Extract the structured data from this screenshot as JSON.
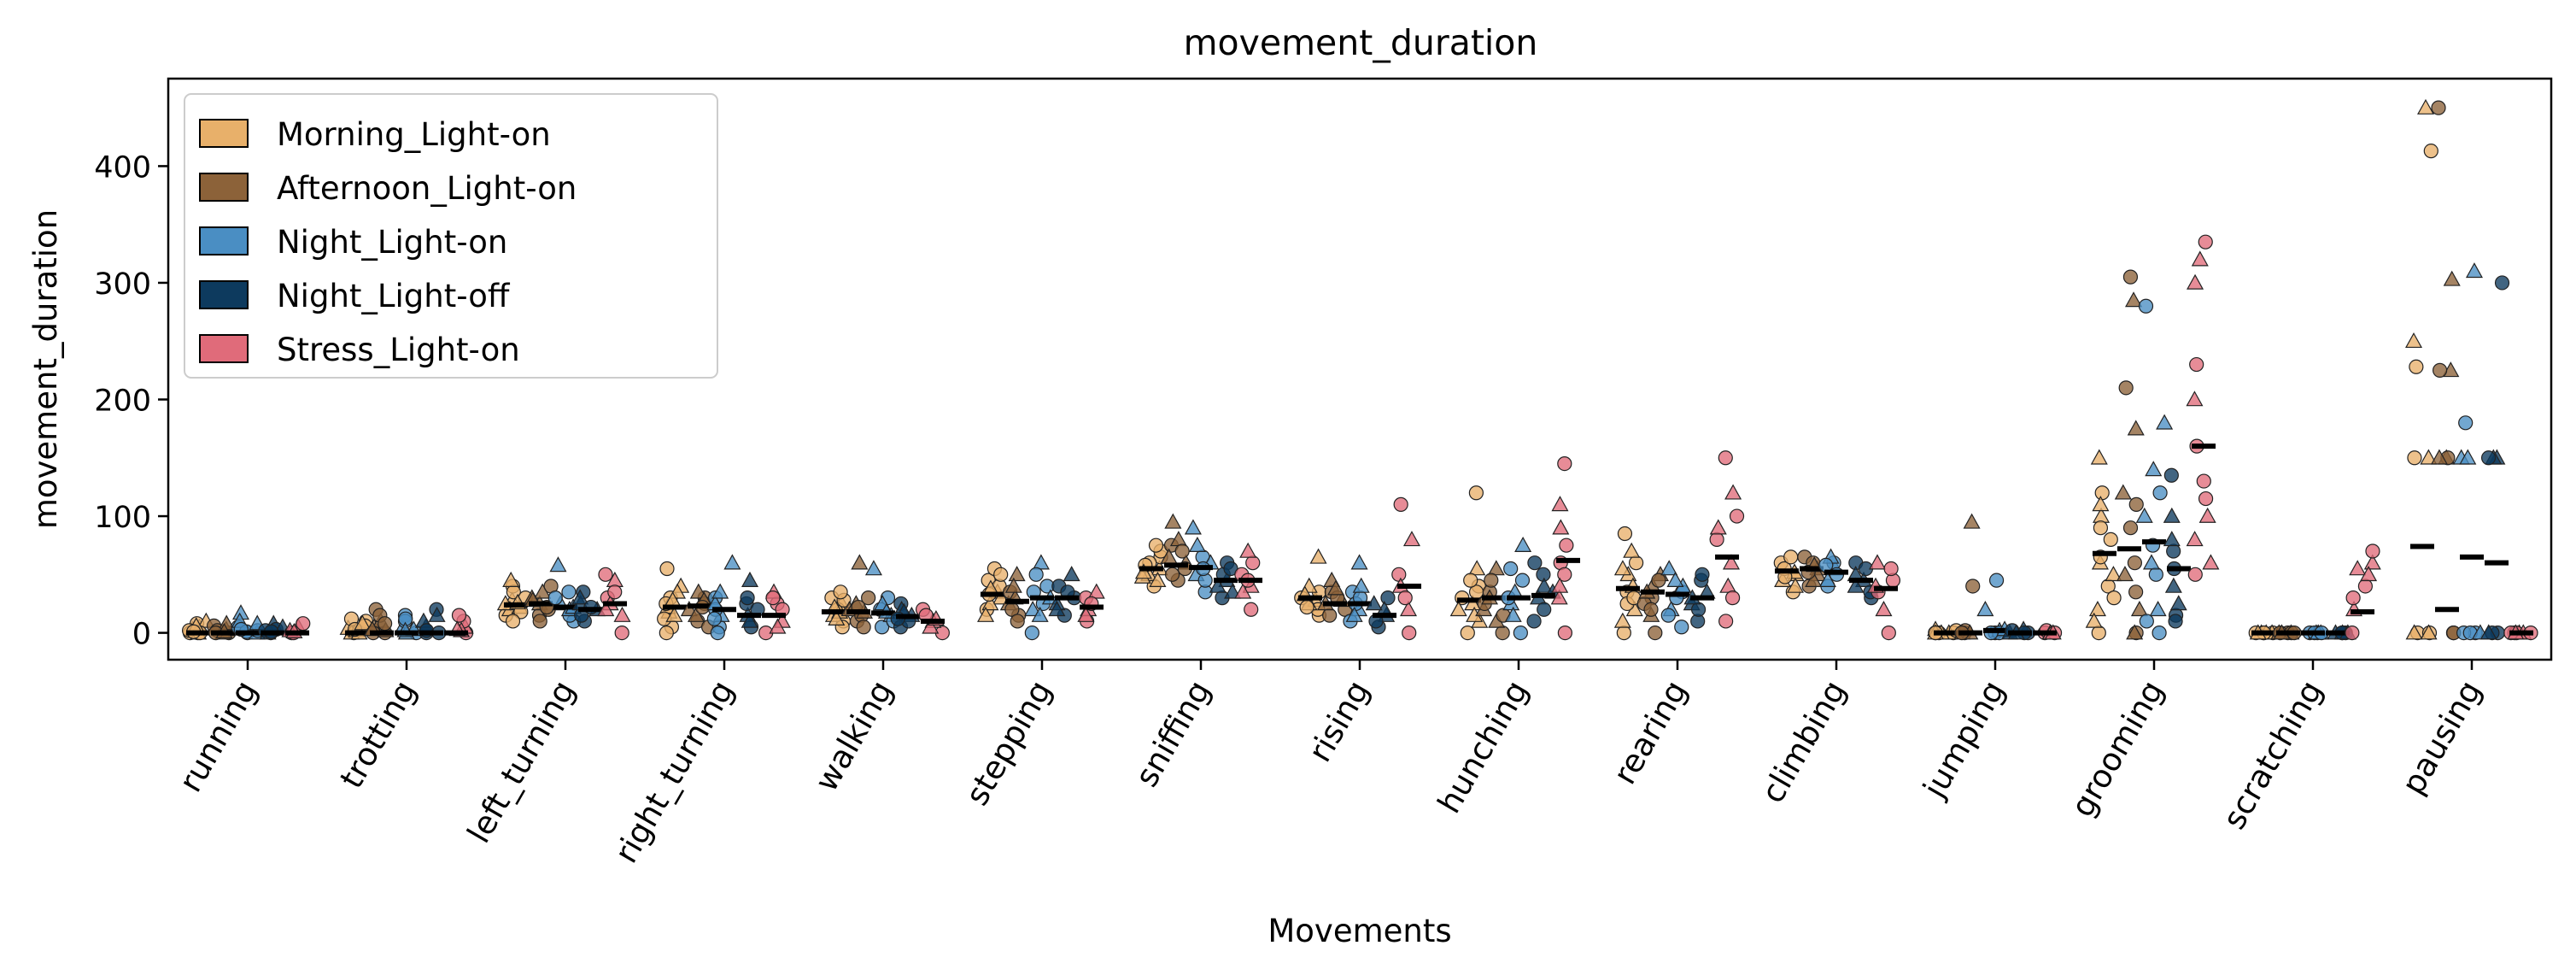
{
  "chart_data": {
    "type": "scatter",
    "title": "movement_duration",
    "xlabel": "Movements",
    "ylabel": "movement_duration",
    "ylim": [
      -23,
      475
    ],
    "yticks": [
      0,
      100,
      200,
      300,
      400
    ],
    "legend_position": "top-left",
    "categories": [
      "running",
      "trotting",
      "left_turning",
      "right_turning",
      "walking",
      "stepping",
      "sniffing",
      "rising",
      "hunching",
      "rearing",
      "climbing",
      "jumping",
      "grooming",
      "scratching",
      "pausing"
    ],
    "series": [
      {
        "name": "Morning_Light-on",
        "color": "#e8b06a",
        "medians": [
          0,
          0,
          24,
          22,
          18,
          33,
          55,
          30,
          28,
          38,
          53,
          0,
          68,
          0,
          74
        ],
        "points": [
          [
            0,
            5,
            0,
            3,
            8,
            0,
            2,
            10,
            0,
            6,
            1
          ],
          [
            0,
            4,
            10,
            0,
            6,
            2,
            12,
            0,
            3,
            8
          ],
          [
            15,
            28,
            40,
            20,
            35,
            22,
            18,
            45,
            30,
            25,
            10,
            26
          ],
          [
            5,
            18,
            30,
            40,
            55,
            22,
            12,
            35,
            25,
            28,
            0,
            15
          ],
          [
            10,
            25,
            30,
            15,
            20,
            18,
            5,
            22,
            28,
            12,
            35
          ],
          [
            20,
            35,
            45,
            30,
            55,
            25,
            40,
            15,
            33,
            38,
            50
          ],
          [
            40,
            55,
            65,
            50,
            70,
            45,
            60,
            48,
            58,
            52,
            75
          ],
          [
            15,
            28,
            35,
            40,
            20,
            25,
            30,
            65,
            22,
            33
          ],
          [
            0,
            25,
            40,
            55,
            30,
            20,
            120,
            10,
            35,
            15,
            45
          ],
          [
            0,
            20,
            35,
            50,
            60,
            70,
            85,
            40,
            25,
            10,
            30,
            55
          ],
          [
            35,
            50,
            60,
            45,
            55,
            40,
            65,
            52,
            48
          ],
          [
            0,
            0,
            0,
            3,
            0,
            0,
            2,
            0,
            0
          ],
          [
            0,
            20,
            40,
            60,
            80,
            100,
            120,
            150,
            65,
            50,
            30,
            10,
            90,
            110
          ],
          [
            0,
            0,
            0,
            0,
            0,
            0,
            0,
            0
          ],
          [
            0,
            450,
            413,
            250,
            228,
            150,
            150,
            0,
            0,
            0
          ]
        ]
      },
      {
        "name": "Afternoon_Light-on",
        "color": "#8c6239",
        "medians": [
          0,
          0,
          25,
          23,
          18,
          27,
          58,
          25,
          30,
          35,
          55,
          0,
          72,
          0,
          20
        ],
        "points": [
          [
            0,
            3,
            6,
            0,
            2,
            8,
            0,
            1
          ],
          [
            0,
            5,
            20,
            10,
            0,
            3,
            15,
            2,
            8
          ],
          [
            15,
            30,
            40,
            25,
            20,
            35,
            10,
            28,
            22
          ],
          [
            10,
            20,
            30,
            35,
            25,
            15,
            5,
            28,
            22
          ],
          [
            10,
            20,
            30,
            60,
            15,
            25,
            5,
            18,
            22
          ],
          [
            15,
            25,
            35,
            50,
            20,
            30,
            10,
            40
          ],
          [
            45,
            60,
            75,
            95,
            50,
            65,
            55,
            80,
            70
          ],
          [
            15,
            25,
            35,
            45,
            20,
            28,
            30,
            38
          ],
          [
            0,
            20,
            35,
            55,
            25,
            10,
            45,
            30,
            15
          ],
          [
            0,
            15,
            30,
            50,
            25,
            40,
            20,
            35,
            45
          ],
          [
            40,
            55,
            65,
            50,
            60,
            45,
            52,
            58
          ],
          [
            0,
            95,
            40,
            0,
            2,
            0,
            0
          ],
          [
            0,
            20,
            60,
            120,
            210,
            285,
            305,
            175,
            90,
            50,
            35,
            0,
            110
          ],
          [
            0,
            0,
            0,
            0,
            0,
            0,
            0
          ],
          [
            0,
            150,
            150,
            225,
            450,
            303,
            225,
            150,
            0
          ]
        ]
      },
      {
        "name": "Night_Light-on",
        "color": "#4a8ec3",
        "medians": [
          0,
          0,
          22,
          20,
          17,
          30,
          56,
          25,
          30,
          33,
          52,
          2,
          78,
          0,
          65
        ],
        "points": [
          [
            0,
            17,
            5,
            0,
            2,
            10,
            1,
            8,
            3
          ],
          [
            0,
            5,
            15,
            0,
            10,
            3,
            12,
            2
          ],
          [
            10,
            25,
            30,
            58,
            15,
            20,
            35,
            22
          ],
          [
            5,
            15,
            30,
            60,
            20,
            25,
            0,
            35,
            12
          ],
          [
            5,
            15,
            30,
            55,
            20,
            25,
            10,
            18
          ],
          [
            0,
            20,
            40,
            60,
            25,
            30,
            35,
            15,
            50
          ],
          [
            35,
            50,
            65,
            90,
            45,
            60,
            55,
            75
          ],
          [
            10,
            20,
            35,
            60,
            25,
            15,
            30,
            40
          ],
          [
            0,
            25,
            45,
            75,
            30,
            15,
            55,
            35
          ],
          [
            5,
            20,
            35,
            55,
            30,
            40,
            15,
            45
          ],
          [
            40,
            55,
            60,
            45,
            50,
            65,
            58
          ],
          [
            0,
            20,
            45,
            2,
            0,
            3,
            0
          ],
          [
            0,
            20,
            50,
            100,
            120,
            180,
            280,
            140,
            75,
            60,
            10
          ],
          [
            0,
            0,
            0,
            0,
            0,
            0,
            0
          ],
          [
            0,
            150,
            180,
            310,
            0,
            150,
            0,
            0
          ]
        ]
      },
      {
        "name": "Night_Light-off",
        "color": "#0d3a5e",
        "medians": [
          0,
          0,
          20,
          15,
          14,
          30,
          45,
          15,
          32,
          30,
          45,
          0,
          55,
          0,
          60
        ],
        "points": [
          [
            0,
            8,
            3,
            0,
            2,
            5,
            1
          ],
          [
            0,
            5,
            20,
            10,
            2,
            15,
            0
          ],
          [
            10,
            20,
            35,
            25,
            15,
            30,
            22
          ],
          [
            5,
            15,
            25,
            45,
            20,
            10,
            30
          ],
          [
            5,
            15,
            25,
            20,
            10,
            18,
            12
          ],
          [
            15,
            25,
            40,
            50,
            30,
            20,
            35
          ],
          [
            30,
            45,
            60,
            40,
            50,
            35,
            55
          ],
          [
            5,
            15,
            30,
            20,
            10,
            25
          ],
          [
            10,
            30,
            50,
            40,
            20,
            35,
            60
          ],
          [
            10,
            25,
            45,
            35,
            20,
            30,
            50
          ],
          [
            30,
            45,
            60,
            50,
            35,
            40,
            55
          ],
          [
            0,
            3,
            0,
            0,
            2,
            0
          ],
          [
            15,
            40,
            70,
            100,
            135,
            80,
            55,
            25,
            10
          ],
          [
            0,
            0,
            0,
            0,
            0,
            0
          ],
          [
            0,
            150,
            300,
            150,
            0,
            0,
            150
          ]
        ]
      },
      {
        "name": "Stress_Light-on",
        "color": "#e06b7a",
        "medians": [
          0,
          0,
          25,
          15,
          10,
          22,
          45,
          40,
          62,
          65,
          38,
          0,
          160,
          18,
          0
        ],
        "points": [
          [
            0,
            5,
            0,
            2,
            8,
            1
          ],
          [
            0,
            5,
            10,
            2,
            15,
            3
          ],
          [
            0,
            15,
            30,
            45,
            50,
            25,
            35,
            20
          ],
          [
            0,
            10,
            25,
            35,
            20,
            5,
            30
          ],
          [
            0,
            10,
            20,
            5,
            15,
            12
          ],
          [
            10,
            20,
            30,
            35,
            25,
            15
          ],
          [
            20,
            40,
            60,
            70,
            50,
            35,
            45
          ],
          [
            0,
            20,
            50,
            80,
            110,
            40,
            30
          ],
          [
            0,
            30,
            60,
            90,
            145,
            110,
            50,
            40,
            75
          ],
          [
            10,
            40,
            80,
            120,
            150,
            60,
            30,
            90,
            100
          ],
          [
            0,
            20,
            45,
            60,
            35,
            40,
            55
          ],
          [
            0,
            0,
            2,
            0,
            0,
            0
          ],
          [
            50,
            100,
            160,
            200,
            230,
            300,
            335,
            320,
            130,
            80,
            115,
            60
          ],
          [
            0,
            20,
            40,
            60,
            70,
            55,
            30,
            50
          ],
          [
            0,
            0,
            0,
            0,
            0,
            0,
            0
          ]
        ]
      }
    ]
  }
}
